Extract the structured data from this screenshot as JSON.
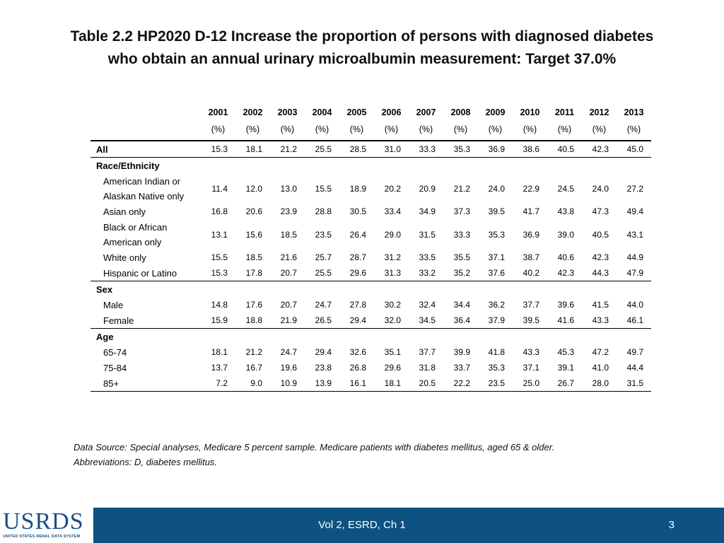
{
  "title": {
    "line1": "Table 2.2  HP2020 D-12 Increase the proportion of persons with diagnosed diabetes",
    "line2": "who obtain an annual urinary microalbumin measurement: Target 37.0%"
  },
  "table": {
    "years": [
      "2001",
      "2002",
      "2003",
      "2004",
      "2005",
      "2006",
      "2007",
      "2008",
      "2009",
      "2010",
      "2011",
      "2012",
      "2013"
    ],
    "unit": "(%)",
    "rows": [
      {
        "label": "All",
        "kind": "group-data",
        "values": [
          "15.3",
          "18.1",
          "21.2",
          "25.5",
          "28.5",
          "31.0",
          "33.3",
          "35.3",
          "36.9",
          "38.6",
          "40.5",
          "42.3",
          "45.0"
        ],
        "sep": true
      },
      {
        "label": "Race/Ethnicity",
        "kind": "group"
      },
      {
        "label": "American Indian or Alaskan Native only",
        "kind": "sub-tall",
        "values": [
          "11.4",
          "12.0",
          "13.0",
          "15.5",
          "18.9",
          "20.2",
          "20.9",
          "21.2",
          "24.0",
          "22.9",
          "24.5",
          "24.0",
          "27.2"
        ]
      },
      {
        "label": "Asian only",
        "kind": "sub",
        "values": [
          "16.8",
          "20.6",
          "23.9",
          "28.8",
          "30.5",
          "33.4",
          "34.9",
          "37.3",
          "39.5",
          "41.7",
          "43.8",
          "47.3",
          "49.4"
        ]
      },
      {
        "label": "Black or African American only",
        "kind": "sub-tall",
        "values": [
          "13.1",
          "15.6",
          "18.5",
          "23.5",
          "26.4",
          "29.0",
          "31.5",
          "33.3",
          "35.3",
          "36.9",
          "39.0",
          "40.5",
          "43.1"
        ]
      },
      {
        "label": "White only",
        "kind": "sub",
        "values": [
          "15.5",
          "18.5",
          "21.6",
          "25.7",
          "28.7",
          "31.2",
          "33.5",
          "35.5",
          "37.1",
          "38.7",
          "40.6",
          "42.3",
          "44.9"
        ]
      },
      {
        "label": "Hispanic or Latino",
        "kind": "sub",
        "values": [
          "15.3",
          "17.8",
          "20.7",
          "25.5",
          "29.6",
          "31.3",
          "33.2",
          "35.2",
          "37.6",
          "40.2",
          "42.3",
          "44.3",
          "47.9"
        ],
        "sep": true
      },
      {
        "label": "Sex",
        "kind": "group"
      },
      {
        "label": "Male",
        "kind": "sub",
        "values": [
          "14.8",
          "17.6",
          "20.7",
          "24.7",
          "27.8",
          "30.2",
          "32.4",
          "34.4",
          "36.2",
          "37.7",
          "39.6",
          "41.5",
          "44.0"
        ]
      },
      {
        "label": "Female",
        "kind": "sub",
        "values": [
          "15.9",
          "18.8",
          "21.9",
          "26.5",
          "29.4",
          "32.0",
          "34.5",
          "36.4",
          "37.9",
          "39.5",
          "41.6",
          "43.3",
          "46.1"
        ],
        "sep": true
      },
      {
        "label": "Age",
        "kind": "group"
      },
      {
        "label": "65-74",
        "kind": "sub",
        "values": [
          "18.1",
          "21.2",
          "24.7",
          "29.4",
          "32.6",
          "35.1",
          "37.7",
          "39.9",
          "41.8",
          "43.3",
          "45.3",
          "47.2",
          "49.7"
        ]
      },
      {
        "label": "75-84",
        "kind": "sub",
        "values": [
          "13.7",
          "16.7",
          "19.6",
          "23.8",
          "26.8",
          "29.6",
          "31.8",
          "33.7",
          "35.3",
          "37.1",
          "39.1",
          "41.0",
          "44.4"
        ]
      },
      {
        "label": "85+",
        "kind": "sub",
        "values": [
          "7.2",
          "9.0",
          "10.9",
          "13.9",
          "16.1",
          "18.1",
          "20.5",
          "22.2",
          "23.5",
          "25.0",
          "26.7",
          "28.0",
          "31.5"
        ],
        "last": true
      }
    ]
  },
  "footnote": {
    "line1": "Data Source: Special analyses, Medicare 5 percent sample. Medicare patients with diabetes mellitus, aged 65 & older.",
    "line2": "Abbreviations: D, diabetes mellitus."
  },
  "footer": {
    "logo_text": "USRDS",
    "logo_sub": "UNITED STATES RENAL DATA SYSTEM",
    "center_text": "Vol 2, ESRD, Ch 1",
    "page_number": "3",
    "bar_color": "#0d5280"
  }
}
